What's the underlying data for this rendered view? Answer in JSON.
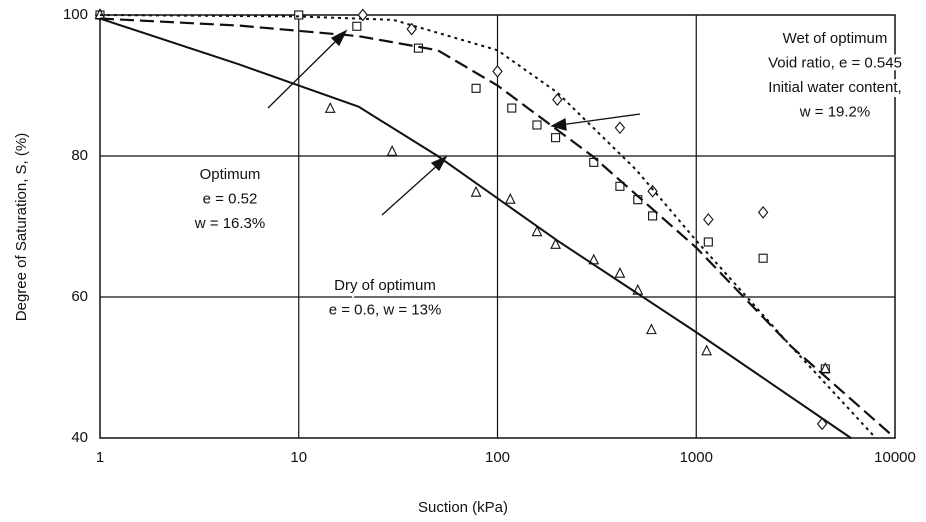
{
  "chart_data": {
    "type": "scatter",
    "x_label": "Suction (kPa)",
    "y_label": "Degree of Saturation, S, (%)",
    "xscale": "log",
    "xlim": [
      1,
      10000
    ],
    "xticks": [
      1,
      10,
      100,
      1000,
      10000
    ],
    "ylim": [
      40,
      100
    ],
    "yticks": [
      40,
      60,
      80,
      100
    ],
    "grid": true,
    "annotations": [
      {
        "lines": [
          "Optimum",
          "e = 0.52",
          "w = 16.3%"
        ]
      },
      {
        "lines": [
          "Dry of optimum",
          "e = 0.6, w = 13%"
        ]
      },
      {
        "lines": [
          "Wet of optimum",
          "Void ratio, e = 0.545",
          "Initial water content,",
          "w = 19.2%"
        ]
      }
    ],
    "series": [
      {
        "marker": "diamond",
        "color": "#111",
        "x": [
          1,
          21,
          37,
          100,
          200,
          413,
          603,
          1150,
          2170,
          4300
        ],
        "values": [
          100,
          100,
          98,
          92,
          88,
          84,
          75,
          71,
          72,
          42
        ]
      },
      {
        "marker": "square",
        "color": "#111",
        "x": [
          1,
          10,
          19.6,
          40,
          78,
          118,
          158,
          196,
          305,
          413,
          508,
          603,
          1150,
          2170,
          4460
        ],
        "values": [
          100,
          100,
          98.4,
          95.3,
          89.6,
          86.8,
          84.4,
          82.6,
          79.1,
          75.7,
          73.8,
          71.5,
          67.8,
          65.5,
          49.8
        ]
      },
      {
        "marker": "triangle",
        "color": "#111",
        "x": [
          1,
          14.4,
          29.5,
          78,
          116,
          158,
          196,
          305,
          413,
          508,
          595,
          1128,
          4460
        ],
        "values": [
          100,
          86.7,
          80.6,
          74.8,
          73.8,
          69.2,
          67.4,
          65.2,
          63.3,
          60.9,
          55.3,
          52.3,
          49.8
        ]
      },
      {
        "style": "solid",
        "color": "#111",
        "x": [
          1,
          5,
          20,
          50,
          200,
          1000,
          6000
        ],
        "values": [
          99.5,
          93,
          87,
          80,
          68,
          55,
          40
        ]
      },
      {
        "style": "dashed",
        "color": "#111",
        "x": [
          1,
          5,
          20,
          50,
          100,
          300,
          1000,
          3000,
          10000
        ],
        "values": [
          99.5,
          98.5,
          97,
          95,
          90,
          80,
          67,
          53,
          40
        ]
      },
      {
        "style": "dotted",
        "color": "#111",
        "x": [
          1,
          10,
          30,
          100,
          200,
          500,
          1000,
          3000,
          8000
        ],
        "values": [
          100,
          99.8,
          99.3,
          95,
          89,
          78,
          68,
          53,
          40
        ]
      }
    ]
  }
}
